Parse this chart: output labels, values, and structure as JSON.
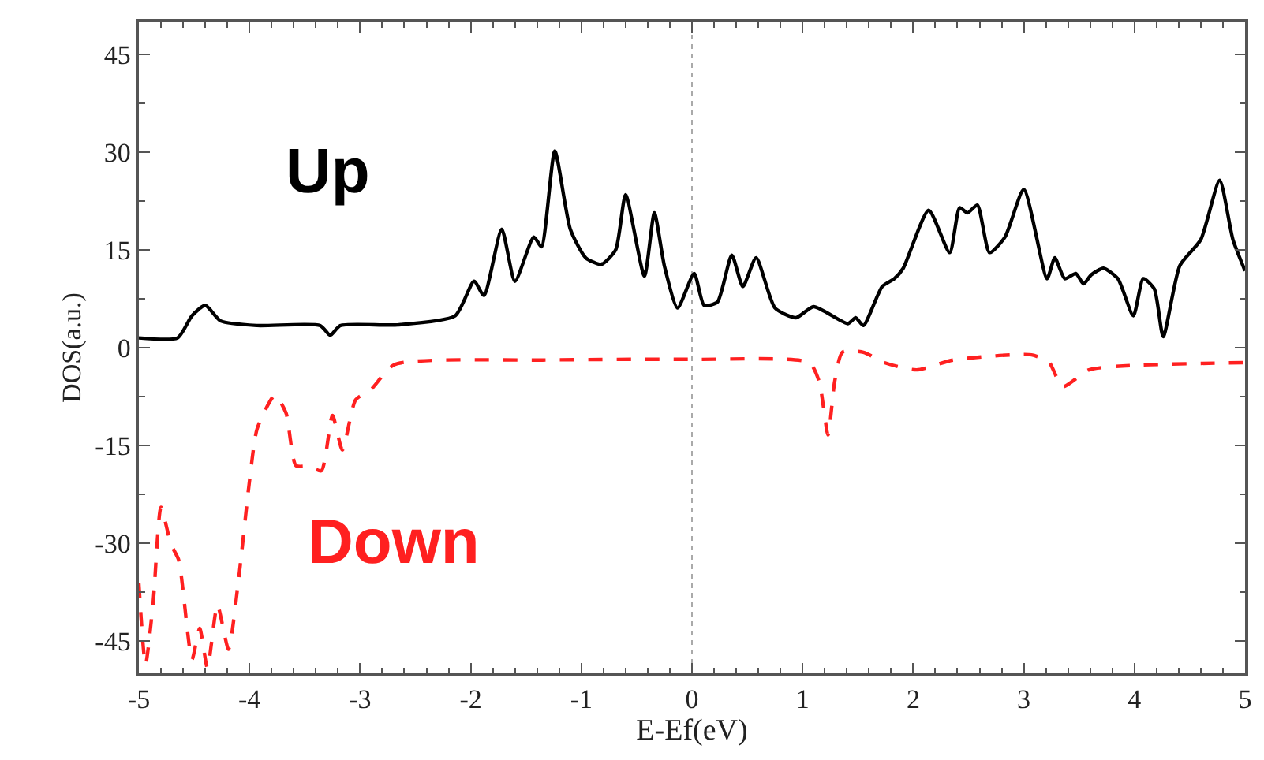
{
  "chart_data": {
    "type": "line",
    "xlabel": "E-Ef(eV)",
    "ylabel": "DOS(a.u.)",
    "xlim": [
      -5,
      5
    ],
    "xticks": [
      -5,
      -4,
      -3,
      -2,
      -1,
      0,
      1,
      2,
      3,
      4,
      5
    ],
    "ylim": [
      -50,
      50
    ],
    "yticks": [
      -45,
      -30,
      -15,
      0,
      15,
      30,
      45
    ],
    "grid": false,
    "legend": false,
    "marker": "none",
    "ref_lines": [
      {
        "axis": "x",
        "value": 0,
        "color": "#aaaaaa",
        "line_style": "dotted"
      }
    ],
    "series": [
      {
        "name": "Up",
        "color": "#000000",
        "line_style": "solid",
        "x": [
          -5.0,
          -4.65,
          -4.52,
          -4.4,
          -4.26,
          -3.93,
          -3.36,
          -3.27,
          -3.18,
          -2.66,
          -2.14,
          -1.97,
          -1.88,
          -1.72,
          -1.6,
          -1.43,
          -1.36,
          -1.24,
          -1.1,
          -0.96,
          -0.82,
          -0.69,
          -0.6,
          -0.43,
          -0.34,
          -0.25,
          -0.13,
          0.02,
          0.11,
          0.23,
          0.36,
          0.46,
          0.58,
          0.75,
          0.94,
          1.1,
          1.41,
          1.48,
          1.55,
          1.72,
          1.83,
          1.91,
          2.14,
          2.33,
          2.42,
          2.49,
          2.58,
          2.69,
          2.83,
          3.0,
          3.21,
          3.28,
          3.37,
          3.47,
          3.54,
          3.61,
          3.72,
          3.85,
          3.99,
          4.08,
          4.18,
          4.26,
          4.41,
          4.6,
          4.77,
          4.89,
          5.0
        ],
        "values": [
          1.5,
          1.5,
          4.9,
          6.5,
          4.1,
          3.4,
          3.4,
          1.9,
          3.4,
          3.5,
          4.9,
          10.2,
          8.0,
          18.2,
          10.2,
          17.0,
          15.5,
          30.2,
          18.2,
          13.8,
          12.8,
          15.0,
          23.5,
          11.0,
          20.7,
          12.6,
          6.1,
          11.4,
          6.5,
          7.0,
          14.2,
          9.4,
          13.8,
          6.1,
          4.6,
          6.3,
          3.7,
          4.6,
          3.4,
          9.4,
          10.6,
          12.2,
          21.1,
          14.6,
          21.5,
          20.7,
          21.9,
          14.6,
          17.0,
          24.3,
          10.6,
          13.8,
          10.6,
          11.4,
          9.8,
          11.2,
          12.2,
          10.6,
          4.9,
          10.6,
          9.0,
          1.7,
          12.6,
          16.6,
          25.7,
          16.6,
          11.8
        ]
      },
      {
        "name": "Down",
        "color": "#ff2020",
        "line_style": "dashed",
        "x": [
          -5.0,
          -4.94,
          -4.87,
          -4.8,
          -4.71,
          -4.64,
          -4.52,
          -4.45,
          -4.38,
          -4.29,
          -4.19,
          -4.1,
          -4.0,
          -3.93,
          -3.77,
          -3.67,
          -3.58,
          -3.46,
          -3.35,
          -3.25,
          -3.16,
          -3.04,
          -2.9,
          -2.69,
          -1.35,
          0.02,
          1.06,
          1.15,
          1.23,
          1.29,
          1.36,
          1.55,
          1.74,
          2.03,
          2.36,
          3.07,
          3.23,
          3.35,
          3.59,
          4.01,
          4.98
        ],
        "values": [
          -36.2,
          -48.7,
          -39.0,
          -24.5,
          -30.2,
          -32.6,
          -47.9,
          -43.1,
          -49.2,
          -39.5,
          -46.3,
          -35.8,
          -20.5,
          -12.4,
          -7.3,
          -10.0,
          -18.1,
          -18.2,
          -18.9,
          -10.4,
          -15.7,
          -8.0,
          -6.4,
          -2.6,
          -1.9,
          -1.8,
          -2.3,
          -5.2,
          -13.4,
          -5.2,
          -0.7,
          -0.7,
          -2.3,
          -3.4,
          -1.9,
          -1.1,
          -2.3,
          -6.0,
          -3.4,
          -2.7,
          -2.3
        ]
      }
    ]
  }
}
